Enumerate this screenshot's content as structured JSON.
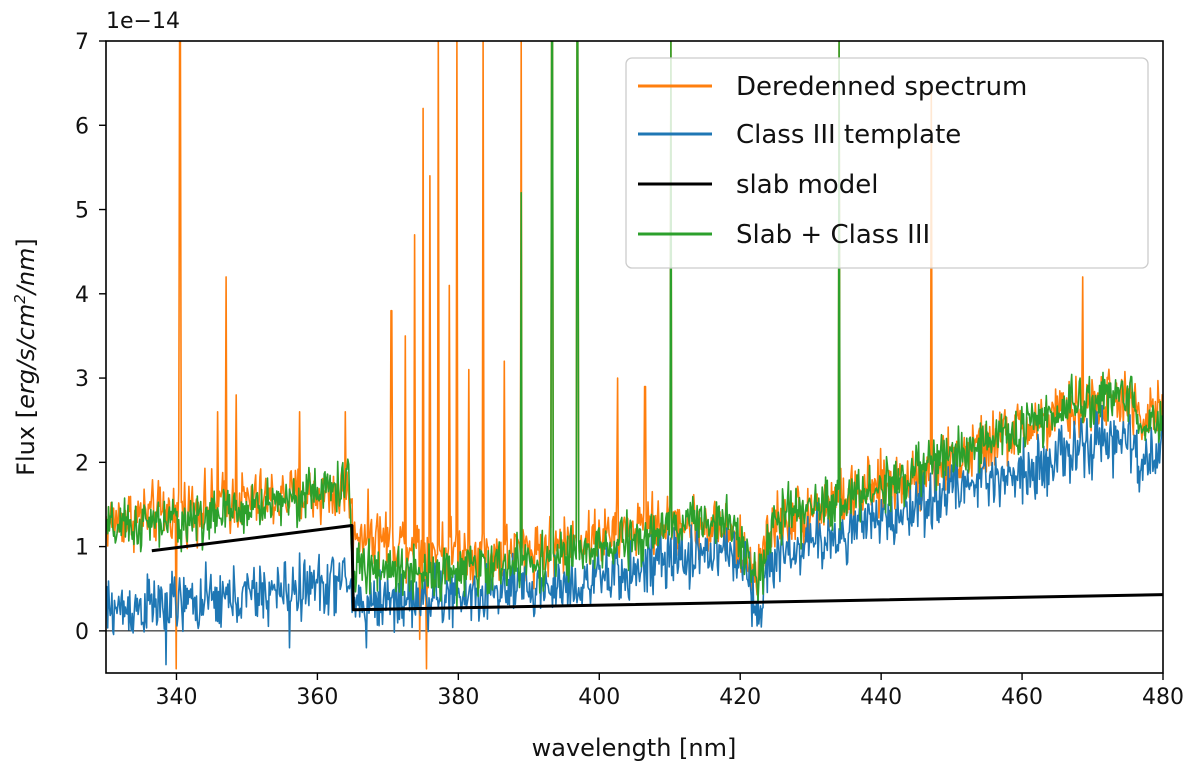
{
  "chart_data": {
    "type": "line",
    "xlabel": "wavelength [nm]",
    "ylabel": "Flux [erg/s/cm²/nm]",
    "ylabel_parts": {
      "prefix": "Flux [",
      "unit": "erg/s/cm",
      "sup": "2",
      "unit_end": "/nm",
      "suffix": "]"
    },
    "y_multiplier_label": "1e−14",
    "xlim": [
      330,
      480
    ],
    "ylim": [
      -0.5,
      7
    ],
    "x_ticks": [
      340,
      360,
      380,
      400,
      420,
      440,
      460,
      480
    ],
    "x_tick_labels": [
      "340",
      "360",
      "380",
      "400",
      "420",
      "440",
      "460",
      "480"
    ],
    "y_ticks": [
      0,
      1,
      2,
      3,
      4,
      5,
      6,
      7
    ],
    "y_tick_labels": [
      "0",
      "1",
      "2",
      "3",
      "4",
      "5",
      "6",
      "7"
    ],
    "zero_line": true,
    "legend_position": "top-right",
    "series": [
      {
        "name": "Deredenned spectrum",
        "color": "#ff7f0e",
        "baseline": [
          [
            330,
            1.3
          ],
          [
            345,
            1.5
          ],
          [
            364.5,
            1.65
          ],
          [
            365,
            1.2
          ],
          [
            375,
            1.0
          ],
          [
            385,
            0.9
          ],
          [
            400,
            1.1
          ],
          [
            410,
            1.3
          ],
          [
            418,
            1.2
          ],
          [
            422,
            0.7
          ],
          [
            425,
            1.3
          ],
          [
            440,
            1.7
          ],
          [
            450,
            2.0
          ],
          [
            460,
            2.4
          ],
          [
            470,
            2.7
          ],
          [
            475,
            2.8
          ],
          [
            477,
            2.4
          ],
          [
            480,
            2.7
          ]
        ],
        "noise": 0.18,
        "emission_lines": [
          [
            340.5,
            7.0
          ],
          [
            347,
            4.2
          ],
          [
            348.5,
            2.8
          ],
          [
            345.8,
            2.6
          ],
          [
            357.5,
            2.6
          ],
          [
            364,
            2.6
          ],
          [
            370.5,
            3.8
          ],
          [
            372.5,
            3.5
          ],
          [
            373.8,
            4.7
          ],
          [
            375.0,
            6.2
          ],
          [
            376.0,
            5.4
          ],
          [
            377.2,
            7.0
          ],
          [
            378.7,
            4.1
          ],
          [
            379.8,
            7.0
          ],
          [
            381.5,
            3.1
          ],
          [
            383.5,
            7.0
          ],
          [
            386.5,
            3.2
          ],
          [
            388.9,
            7.0
          ],
          [
            393.3,
            7.0
          ],
          [
            396.9,
            7.0
          ],
          [
            402.6,
            3.0
          ],
          [
            406.5,
            2.9
          ],
          [
            410.2,
            7.0
          ],
          [
            434.0,
            7.0
          ],
          [
            447.1,
            6.4
          ],
          [
            468.6,
            4.2
          ]
        ],
        "absorption_lines": [
          [
            340.0,
            -0.45
          ],
          [
            375.5,
            -0.45
          ],
          [
            374.5,
            -0.1
          ]
        ]
      },
      {
        "name": "Class III template",
        "color": "#1f77b4",
        "baseline": [
          [
            330,
            0.25
          ],
          [
            345,
            0.35
          ],
          [
            364.5,
            0.6
          ],
          [
            365,
            0.35
          ],
          [
            380,
            0.4
          ],
          [
            400,
            0.6
          ],
          [
            415,
            0.95
          ],
          [
            420,
            0.9
          ],
          [
            422.5,
            0.3
          ],
          [
            425,
            0.9
          ],
          [
            440,
            1.3
          ],
          [
            450,
            1.7
          ],
          [
            460,
            1.9
          ],
          [
            470,
            2.2
          ],
          [
            475,
            2.3
          ],
          [
            477,
            1.9
          ],
          [
            480,
            2.2
          ]
        ],
        "noise": 0.18,
        "emission_lines": [],
        "absorption_lines": [
          [
            338.5,
            -0.4
          ],
          [
            356.0,
            -0.2
          ],
          [
            367.0,
            -0.2
          ]
        ]
      },
      {
        "name": "slab model",
        "color": "#000000",
        "points": [
          [
            336.5,
            0.95
          ],
          [
            364.9,
            1.25
          ],
          [
            365.1,
            0.25
          ],
          [
            480,
            0.43
          ]
        ]
      },
      {
        "name": "Slab + Class III",
        "color": "#2ca02c",
        "baseline": [
          [
            330,
            1.2
          ],
          [
            345,
            1.35
          ],
          [
            364.5,
            1.75
          ],
          [
            365,
            0.75
          ],
          [
            380,
            0.7
          ],
          [
            400,
            0.95
          ],
          [
            415,
            1.35
          ],
          [
            420,
            1.2
          ],
          [
            422.5,
            0.6
          ],
          [
            425,
            1.3
          ],
          [
            440,
            1.7
          ],
          [
            450,
            2.1
          ],
          [
            460,
            2.4
          ],
          [
            470,
            2.75
          ],
          [
            475,
            2.85
          ],
          [
            477,
            2.4
          ],
          [
            480,
            2.6
          ]
        ],
        "noise": 0.15,
        "emission_lines": [
          [
            388.9,
            5.2
          ],
          [
            393.3,
            7.0
          ],
          [
            396.9,
            7.0
          ],
          [
            410.2,
            7.0
          ],
          [
            434.0,
            7.0
          ]
        ],
        "absorption_lines": []
      }
    ]
  }
}
